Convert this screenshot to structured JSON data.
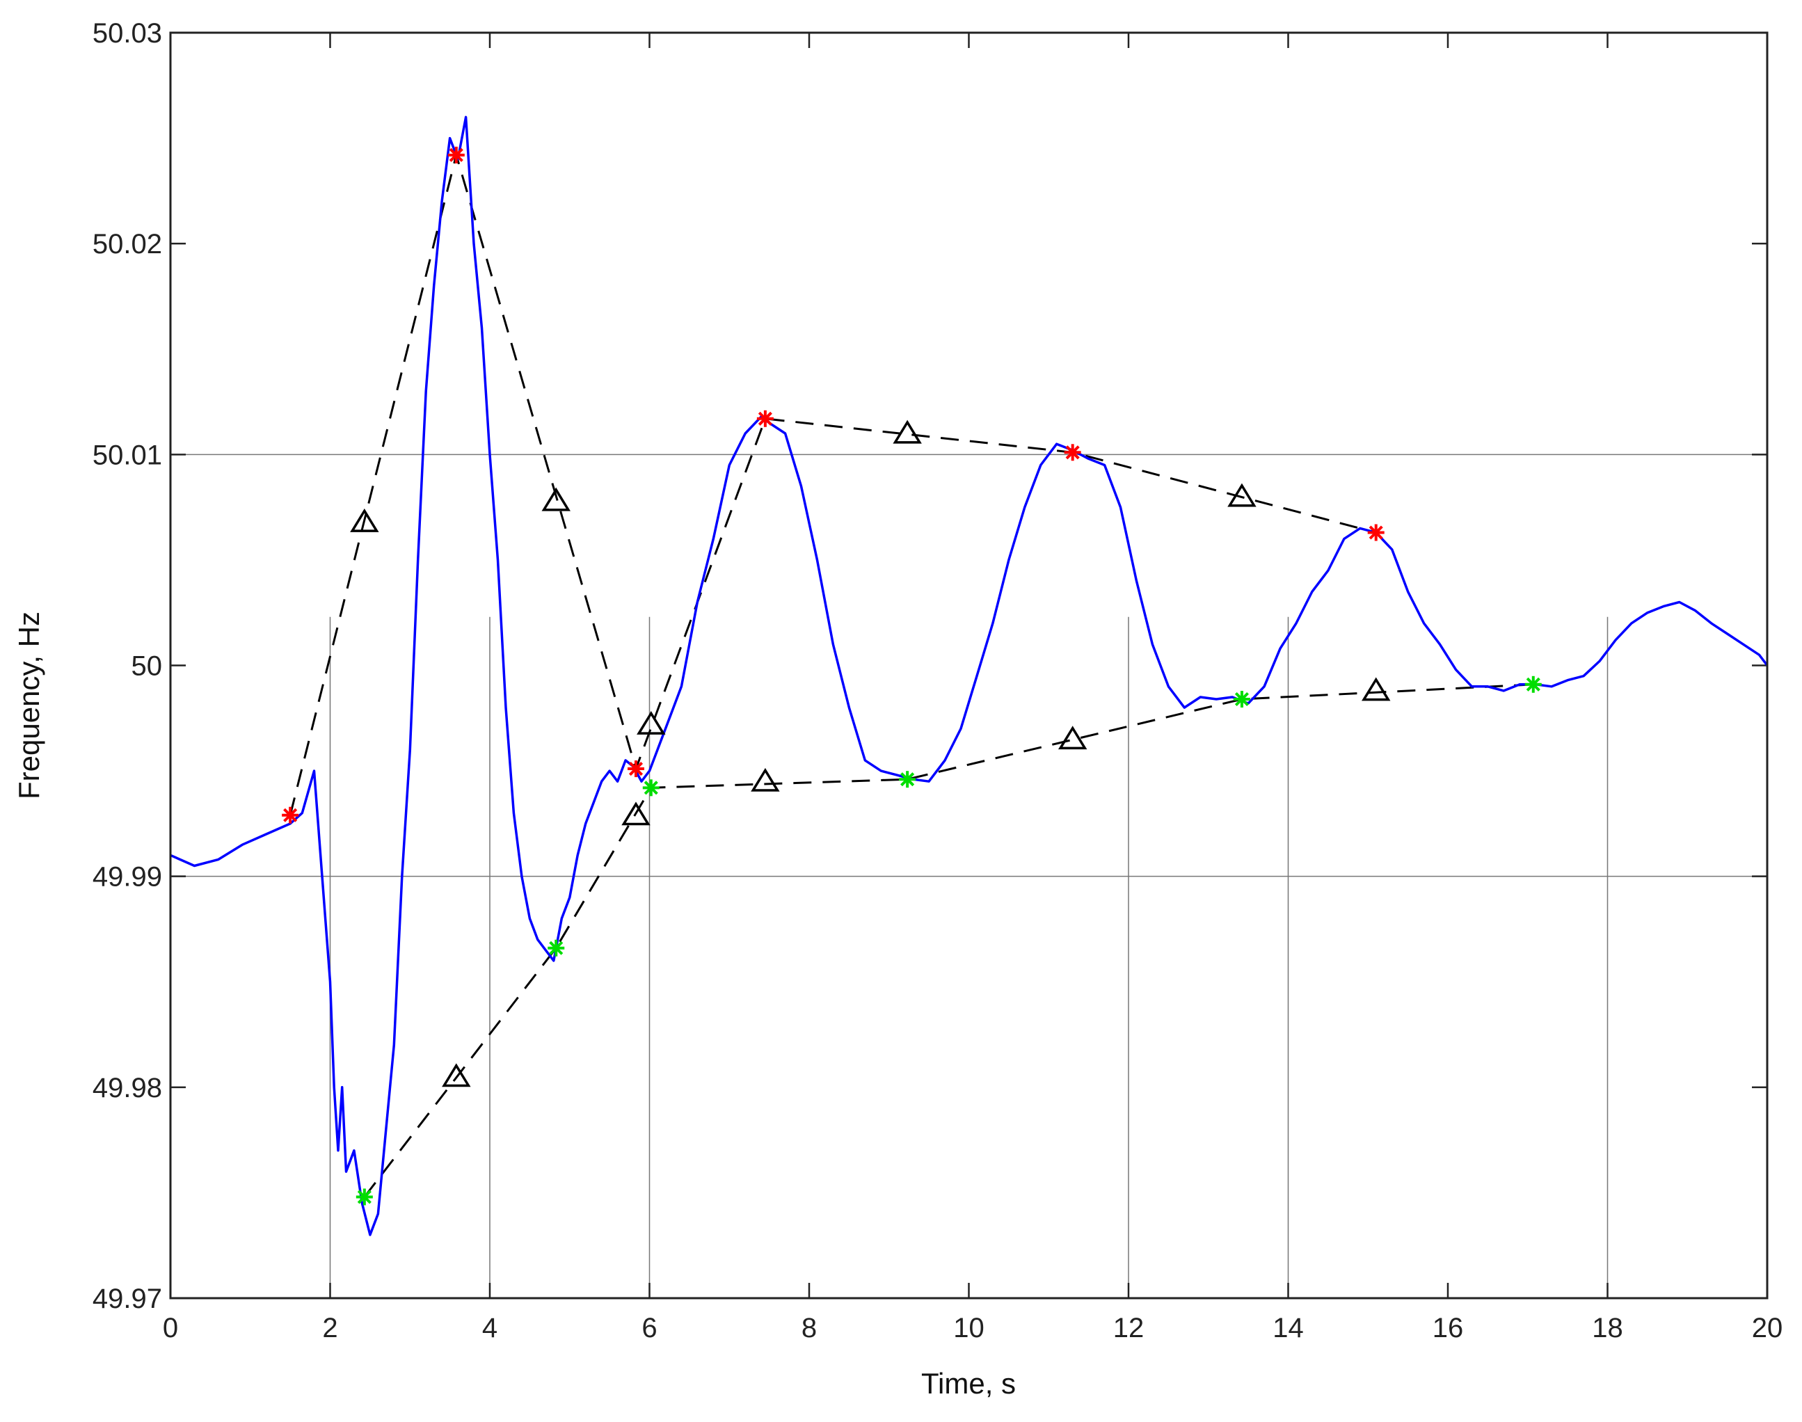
{
  "chart_data": {
    "type": "line",
    "title": "",
    "xlabel": "Time, s",
    "ylabel": "Frequency, Hz",
    "xlim": [
      0,
      20
    ],
    "ylim": [
      49.97,
      50.03
    ],
    "xticks": [
      0,
      2,
      4,
      6,
      8,
      10,
      12,
      14,
      16,
      18,
      20
    ],
    "xtick_labels": [
      "0",
      "2",
      "4",
      "6",
      "8",
      "10",
      "12",
      "14",
      "16",
      "18",
      "20"
    ],
    "yticks": [
      49.97,
      49.98,
      49.99,
      50,
      50.01,
      50.02,
      50.03
    ],
    "ytick_labels": [
      "49.97",
      "49.98",
      "49.99",
      "50",
      "50.01",
      "50.02",
      "50.03"
    ],
    "grid": {
      "horizontal_at": [
        49.99,
        50.01
      ],
      "vertical_at": [
        2,
        4,
        6,
        12,
        14,
        18
      ],
      "vertical_top": 50.0023
    },
    "colors": {
      "signal": "#0000ff",
      "maxima": "#ff0000",
      "minima": "#00dd00",
      "envelope": "#000000",
      "grid": "#777777"
    },
    "series": [
      {
        "kind": "signal",
        "color": "#0000ff",
        "x": [
          0,
          0.3,
          0.6,
          0.9,
          1.2,
          1.5,
          1.65,
          1.8,
          1.9,
          2.0,
          2.05,
          2.1,
          2.15,
          2.2,
          2.3,
          2.4,
          2.5,
          2.6,
          2.7,
          2.8,
          2.9,
          3.0,
          3.1,
          3.2,
          3.3,
          3.4,
          3.5,
          3.6,
          3.7,
          3.8,
          3.9,
          4.0,
          4.1,
          4.2,
          4.3,
          4.4,
          4.5,
          4.6,
          4.7,
          4.8,
          4.9,
          5.0,
          5.1,
          5.2,
          5.3,
          5.4,
          5.5,
          5.6,
          5.7,
          5.8,
          5.9,
          6.0,
          6.2,
          6.4,
          6.6,
          6.8,
          7.0,
          7.2,
          7.4,
          7.5,
          7.7,
          7.9,
          8.1,
          8.3,
          8.5,
          8.7,
          8.9,
          9.1,
          9.3,
          9.5,
          9.7,
          9.9,
          10.1,
          10.3,
          10.5,
          10.7,
          10.9,
          11.1,
          11.3,
          11.5,
          11.7,
          11.9,
          12.1,
          12.3,
          12.5,
          12.7,
          12.9,
          13.1,
          13.3,
          13.5,
          13.7,
          13.9,
          14.1,
          14.3,
          14.5,
          14.7,
          14.9,
          15.1,
          15.3,
          15.5,
          15.7,
          15.9,
          16.1,
          16.3,
          16.5,
          16.7,
          16.9,
          17.1,
          17.3,
          17.5,
          17.7,
          17.9,
          18.1,
          18.3,
          18.5,
          18.7,
          18.9,
          19.1,
          19.3,
          19.5,
          19.7,
          19.9,
          20.0
        ],
        "y": [
          49.991,
          49.9905,
          49.9908,
          49.9915,
          49.992,
          49.9925,
          49.993,
          49.995,
          49.99,
          49.985,
          49.98,
          49.977,
          49.98,
          49.976,
          49.977,
          49.9745,
          49.973,
          49.974,
          49.978,
          49.982,
          49.99,
          49.996,
          50.005,
          50.013,
          50.018,
          50.022,
          50.025,
          50.024,
          50.026,
          50.02,
          50.016,
          50.01,
          50.005,
          49.998,
          49.993,
          49.99,
          49.988,
          49.987,
          49.9865,
          49.986,
          49.988,
          49.989,
          49.991,
          49.9925,
          49.9935,
          49.9945,
          49.995,
          49.9945,
          49.9955,
          49.9952,
          49.9945,
          49.995,
          49.997,
          49.999,
          50.003,
          50.006,
          50.0095,
          50.011,
          50.0118,
          50.0115,
          50.011,
          50.0085,
          50.005,
          50.001,
          49.998,
          49.9955,
          49.995,
          49.9948,
          49.9946,
          49.9945,
          49.9955,
          49.997,
          49.9995,
          50.002,
          50.005,
          50.0075,
          50.0095,
          50.0105,
          50.0102,
          50.0098,
          50.0095,
          50.0075,
          50.004,
          50.001,
          49.999,
          49.998,
          49.9985,
          49.9984,
          49.9985,
          49.9982,
          49.999,
          50.0008,
          50.002,
          50.0035,
          50.0045,
          50.006,
          50.0065,
          50.0063,
          50.0055,
          50.0035,
          50.002,
          50.001,
          49.9998,
          49.999,
          49.999,
          49.9988,
          49.9991,
          49.9991,
          49.999,
          49.9993,
          49.9995,
          50.0002,
          50.0012,
          50.002,
          50.0025,
          50.0028,
          50.003,
          50.0026,
          50.002,
          50.0015,
          50.001,
          50.0005,
          50.0
        ]
      },
      {
        "kind": "upper-envelope",
        "color": "#000000",
        "x": [
          1.5,
          3.58,
          5.83,
          7.45,
          11.3,
          15.1
        ],
        "y": [
          49.9929,
          50.0242,
          49.9951,
          50.0117,
          50.0101,
          50.0063
        ]
      },
      {
        "kind": "lower-envelope",
        "color": "#000000",
        "x": [
          2.43,
          4.83,
          6.02,
          9.23,
          13.42,
          17.07
        ],
        "y": [
          49.9748,
          49.9866,
          49.9942,
          49.9946,
          49.9984,
          49.9991
        ]
      },
      {
        "kind": "maxima",
        "color": "#ff0000",
        "x": [
          1.5,
          3.58,
          5.83,
          7.45,
          11.3,
          15.1
        ],
        "y": [
          49.9929,
          50.0242,
          49.9951,
          50.0117,
          50.0101,
          50.0063
        ]
      },
      {
        "kind": "minima",
        "color": "#00dd00",
        "x": [
          2.43,
          4.83,
          6.02,
          9.23,
          13.42,
          17.07
        ],
        "y": [
          49.9748,
          49.9866,
          49.9942,
          49.9946,
          49.9984,
          49.9991
        ]
      },
      {
        "kind": "envelope-samples",
        "color": "#000000",
        "x": [
          2.43,
          3.58,
          4.83,
          5.83,
          6.02,
          7.45,
          9.23,
          11.3,
          13.42,
          15.1
        ],
        "y": [
          50.0068,
          49.9805,
          50.0078,
          49.9929,
          49.9972,
          49.9945,
          50.011,
          49.9965,
          50.008,
          49.9988
        ]
      }
    ]
  }
}
